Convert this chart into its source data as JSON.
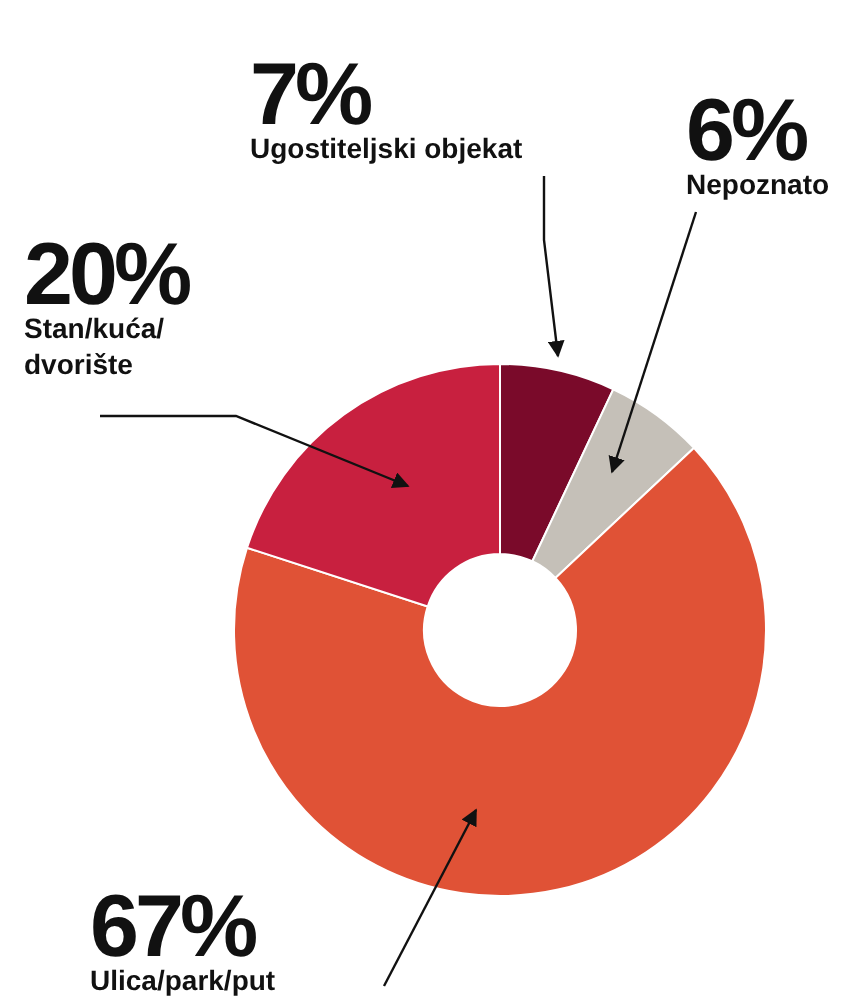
{
  "chart_data": {
    "type": "donut",
    "categories": [
      "Ugostiteljski objekat",
      "Nepoznato",
      "Ulica/park/put",
      "Stan/kuća/dvorište"
    ],
    "values": [
      7,
      6,
      67,
      20
    ],
    "value_labels": [
      "7%",
      "6%",
      "67%",
      "20%"
    ],
    "colors": [
      "#7a0a2a",
      "#c5c0b8",
      "#e05236",
      "#c8203f"
    ]
  }
}
